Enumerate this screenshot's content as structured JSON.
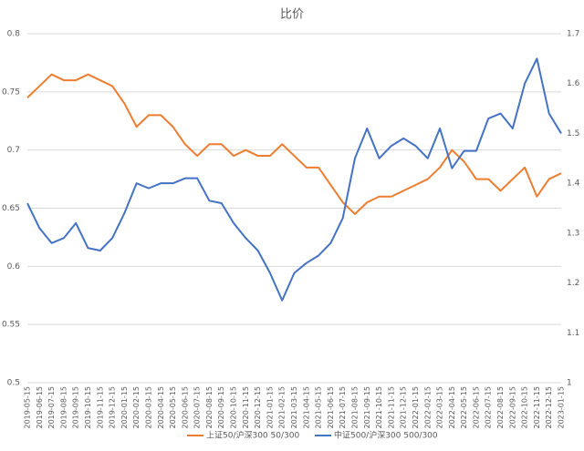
{
  "chart_data": {
    "type": "line",
    "title": "比价",
    "x": [
      "2019-05-15",
      "2019-06-15",
      "2019-07-15",
      "2019-08-15",
      "2019-09-15",
      "2019-10-15",
      "2019-11-15",
      "2019-12-15",
      "2020-01-15",
      "2020-02-15",
      "2020-03-15",
      "2020-04-15",
      "2020-05-15",
      "2020-06-15",
      "2020-07-15",
      "2020-08-15",
      "2020-09-15",
      "2020-10-15",
      "2020-11-15",
      "2020-12-15",
      "2021-01-15",
      "2021-02-15",
      "2021-03-15",
      "2021-04-15",
      "2021-05-15",
      "2021-06-15",
      "2021-07-15",
      "2021-08-15",
      "2021-09-15",
      "2021-10-15",
      "2021-11-15",
      "2021-12-15",
      "2022-01-15",
      "2022-02-15",
      "2022-03-15",
      "2022-04-15",
      "2022-05-15",
      "2022-06-15",
      "2022-07-15",
      "2022-08-15",
      "2022-09-15",
      "2022-10-15",
      "2022-11-15",
      "2022-12-15",
      "2023-01-15"
    ],
    "series": [
      {
        "name": "上证50/沪深300 50/300",
        "color": "#ed7d31",
        "axis": "y",
        "values": [
          0.745,
          0.755,
          0.765,
          0.76,
          0.76,
          0.765,
          0.76,
          0.755,
          0.74,
          0.72,
          0.73,
          0.73,
          0.72,
          0.705,
          0.695,
          0.705,
          0.705,
          0.695,
          0.7,
          0.695,
          0.695,
          0.705,
          0.695,
          0.685,
          0.685,
          0.67,
          0.655,
          0.645,
          0.655,
          0.66,
          0.66,
          0.665,
          0.67,
          0.675,
          0.685,
          0.7,
          0.69,
          0.675,
          0.675,
          0.665,
          0.675,
          0.685,
          0.66,
          0.675,
          0.68
        ]
      },
      {
        "name": "中证500/沪深300 500/300",
        "color": "#4472c4",
        "axis": "y2",
        "values": [
          1.36,
          1.31,
          1.28,
          1.29,
          1.32,
          1.27,
          1.265,
          1.29,
          1.34,
          1.4,
          1.39,
          1.4,
          1.4,
          1.41,
          1.41,
          1.365,
          1.36,
          1.32,
          1.29,
          1.265,
          1.22,
          1.165,
          1.22,
          1.24,
          1.255,
          1.28,
          1.33,
          1.45,
          1.51,
          1.45,
          1.475,
          1.49,
          1.475,
          1.45,
          1.51,
          1.43,
          1.465,
          1.465,
          1.53,
          1.54,
          1.51,
          1.6,
          1.65,
          1.54,
          1.5
        ]
      }
    ],
    "ylim": [
      0.5,
      0.8
    ],
    "yticks": [
      0.5,
      0.55,
      0.6,
      0.65,
      0.7,
      0.75,
      0.8
    ],
    "y2lim": [
      1,
      1.7
    ],
    "y2ticks": [
      1,
      1.1,
      1.2,
      1.3,
      1.4,
      1.5,
      1.6,
      1.7
    ],
    "grid": true,
    "legend": "bottom"
  }
}
